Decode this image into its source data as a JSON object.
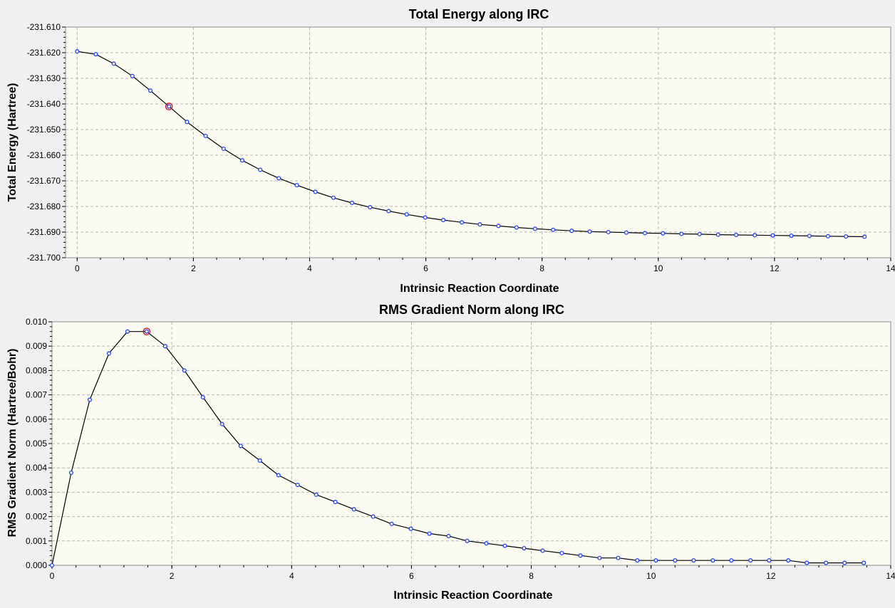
{
  "colors": {
    "window_bg": "#f0f0f0",
    "plot_bg": "#fbfbf1",
    "grid": "#b4b4b4",
    "line": "#000000",
    "marker": "#1f3fff",
    "highlight": "#d01818"
  },
  "chart_data": [
    {
      "type": "line",
      "title": "Total Energy along IRC",
      "xlabel": "Intrinsic Reaction Coordinate",
      "ylabel": "Total Energy (Hartree)",
      "xlim": [
        -0.2,
        14
      ],
      "ylim": [
        -231.7,
        -231.61
      ],
      "xticks": [
        0,
        2,
        4,
        6,
        8,
        10,
        12,
        14
      ],
      "xtick_labels": [
        "0",
        "2",
        "4",
        "6",
        "8",
        "10",
        "12",
        "14"
      ],
      "yticks": [
        -231.61,
        -231.62,
        -231.63,
        -231.64,
        -231.65,
        -231.66,
        -231.67,
        -231.68,
        -231.69,
        -231.7
      ],
      "ytick_labels": [
        "-231.610",
        "-231.620",
        "-231.630",
        "-231.640",
        "-231.650",
        "-231.660",
        "-231.670",
        "-231.680",
        "-231.690",
        "-231.700"
      ],
      "grid": true,
      "highlight_index": 5,
      "series": [
        {
          "x": [
            0,
            0.32,
            0.63,
            0.95,
            1.26,
            1.58,
            1.89,
            2.21,
            2.52,
            2.84,
            3.15,
            3.47,
            3.78,
            4.1,
            4.41,
            4.73,
            5.04,
            5.36,
            5.67,
            5.99,
            6.3,
            6.62,
            6.93,
            7.25,
            7.56,
            7.88,
            8.19,
            8.51,
            8.82,
            9.14,
            9.45,
            9.77,
            10.08,
            10.4,
            10.71,
            11.03,
            11.34,
            11.66,
            11.97,
            12.29,
            12.6,
            12.92,
            13.23,
            13.55
          ],
          "y": [
            -231.6195,
            -231.6206,
            -231.6243,
            -231.6291,
            -231.6348,
            -231.641,
            -231.647,
            -231.6525,
            -231.6575,
            -231.662,
            -231.6657,
            -231.669,
            -231.6717,
            -231.6743,
            -231.6766,
            -231.6786,
            -231.6803,
            -231.6818,
            -231.6831,
            -231.6843,
            -231.6853,
            -231.6862,
            -231.687,
            -231.6876,
            -231.6882,
            -231.6887,
            -231.6891,
            -231.6895,
            -231.6898,
            -231.69,
            -231.6902,
            -231.6904,
            -231.6905,
            -231.6907,
            -231.6908,
            -231.691,
            -231.6911,
            -231.6912,
            -231.6913,
            -231.6914,
            -231.6915,
            -231.6916,
            -231.6917,
            -231.6918
          ]
        }
      ]
    },
    {
      "type": "line",
      "title": "RMS Gradient Norm along IRC",
      "xlabel": "Intrinsic Reaction Coordinate",
      "ylabel": "RMS Gradient Norm (Hartree/Bohr)",
      "xlim": [
        0,
        14
      ],
      "ylim": [
        0,
        0.01
      ],
      "xticks": [
        0,
        2,
        4,
        6,
        8,
        10,
        12,
        14
      ],
      "xtick_labels": [
        "0",
        "2",
        "4",
        "6",
        "8",
        "10",
        "12",
        "14"
      ],
      "yticks": [
        0.0,
        0.001,
        0.002,
        0.003,
        0.004,
        0.005,
        0.006,
        0.007,
        0.008,
        0.009,
        0.01
      ],
      "ytick_labels": [
        "0.000",
        "0.001",
        "0.002",
        "0.003",
        "0.004",
        "0.005",
        "0.006",
        "0.007",
        "0.008",
        "0.009",
        "0.010"
      ],
      "grid": true,
      "highlight_index": 5,
      "series": [
        {
          "x": [
            0,
            0.32,
            0.63,
            0.95,
            1.26,
            1.58,
            1.89,
            2.21,
            2.52,
            2.84,
            3.15,
            3.47,
            3.78,
            4.1,
            4.41,
            4.73,
            5.04,
            5.36,
            5.67,
            5.99,
            6.3,
            6.62,
            6.93,
            7.25,
            7.56,
            7.88,
            8.19,
            8.51,
            8.82,
            9.14,
            9.45,
            9.77,
            10.08,
            10.4,
            10.71,
            11.03,
            11.34,
            11.66,
            11.97,
            12.29,
            12.6,
            12.92,
            13.23,
            13.55
          ],
          "y": [
            0.0,
            0.0038,
            0.0068,
            0.0087,
            0.0096,
            0.0096,
            0.009,
            0.008,
            0.0069,
            0.0058,
            0.0049,
            0.0043,
            0.0037,
            0.0033,
            0.0029,
            0.0026,
            0.0023,
            0.002,
            0.0017,
            0.0015,
            0.0013,
            0.0012,
            0.001,
            0.0009,
            0.0008,
            0.0007,
            0.0006,
            0.0005,
            0.0004,
            0.0003,
            0.0003,
            0.0002,
            0.0002,
            0.0002,
            0.0002,
            0.0002,
            0.0002,
            0.0002,
            0.0002,
            0.0002,
            0.0001,
            0.0001,
            0.0001,
            0.0001
          ]
        }
      ]
    }
  ]
}
